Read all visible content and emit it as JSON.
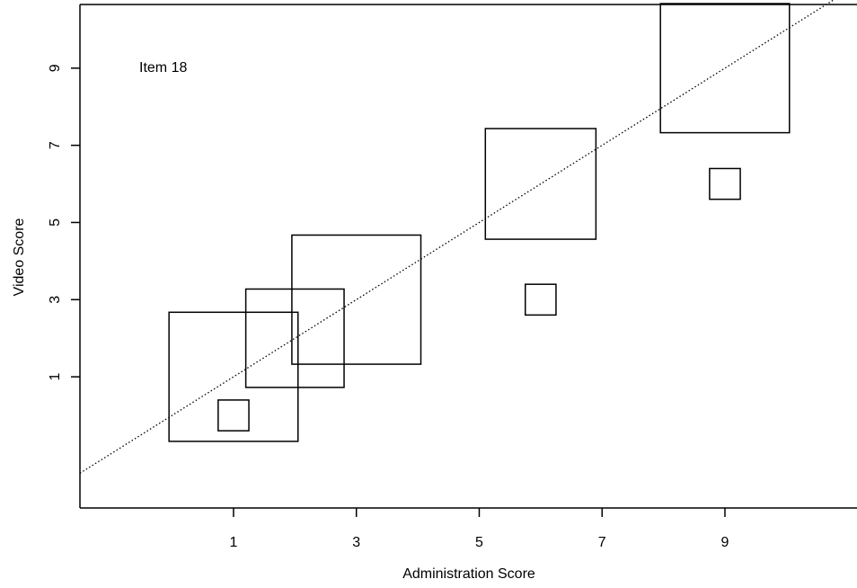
{
  "chart_data": {
    "type": "scatter",
    "annotation": "Item 18",
    "xlabel": "Administration Score",
    "ylabel": "Video Score",
    "xlim": [
      -1.5,
      11.15
    ],
    "ylim": [
      -2.4,
      10.65
    ],
    "xticks": [
      1,
      3,
      5,
      7,
      9
    ],
    "yticks": [
      1,
      3,
      5,
      7,
      9
    ],
    "grid": false,
    "reference_line": {
      "slope": 1,
      "intercept": 0,
      "style": "dotted"
    },
    "marker": "square",
    "points": [
      {
        "x": 1,
        "y": 0,
        "size": 0.5
      },
      {
        "x": 1,
        "y": 1,
        "size": 2.1
      },
      {
        "x": 2,
        "y": 2,
        "size": 1.6
      },
      {
        "x": 3,
        "y": 3,
        "size": 2.1
      },
      {
        "x": 6,
        "y": 3,
        "size": 0.5
      },
      {
        "x": 6,
        "y": 6,
        "size": 1.8
      },
      {
        "x": 9,
        "y": 6,
        "size": 0.5
      },
      {
        "x": 9,
        "y": 9,
        "size": 2.1
      }
    ]
  }
}
